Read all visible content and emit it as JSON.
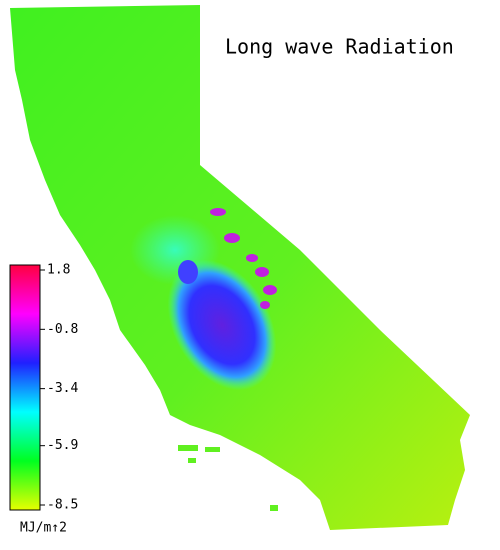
{
  "title": "Long wave Radiation",
  "colorbar": {
    "label": "MJ/m↑2",
    "lim": [
      -8.5,
      1.8
    ],
    "ticks": [
      1.8,
      -0.8,
      -3.4,
      -5.9,
      -8.5
    ],
    "colors": [
      "#e6ff00",
      "#00ff20",
      "#00ffff",
      "#2020ff",
      "#ff00ff",
      "#ff0040"
    ]
  }
}
